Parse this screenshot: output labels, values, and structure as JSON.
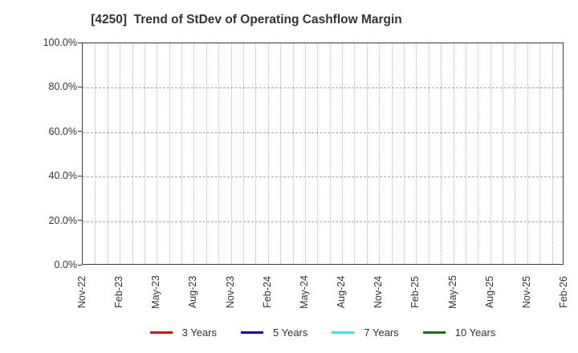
{
  "chart_data": {
    "type": "line",
    "title": "[4250]  Trend of StDev of Operating Cashflow Margin",
    "title_color": "#333333",
    "x_tick_labels": [
      "Nov-22",
      "Feb-23",
      "May-23",
      "Aug-23",
      "Nov-23",
      "Feb-24",
      "May-24",
      "Aug-24",
      "Nov-24",
      "Feb-25",
      "May-25",
      "Aug-25",
      "Nov-25",
      "Feb-26"
    ],
    "x_months_total": 39,
    "x_label_step_months": 3,
    "y_tick_labels": [
      "0.0%",
      "20.0%",
      "40.0%",
      "60.0%",
      "80.0%",
      "100.0%"
    ],
    "ylim": [
      0,
      100
    ],
    "grid": true,
    "grid_vertical_style": "dotted",
    "grid_horizontal_style": "dashed",
    "grid_color": "#b0b0b0",
    "axis_color": "#3c3c3c",
    "legend_position": "bottom",
    "series": [
      {
        "name": "3 Years",
        "color": "#ff0000",
        "values": []
      },
      {
        "name": "5 Years",
        "color": "#0000ff",
        "values": []
      },
      {
        "name": "7 Years",
        "color": "#00ffff",
        "values": []
      },
      {
        "name": "10 Years",
        "color": "#008000",
        "values": []
      }
    ]
  }
}
